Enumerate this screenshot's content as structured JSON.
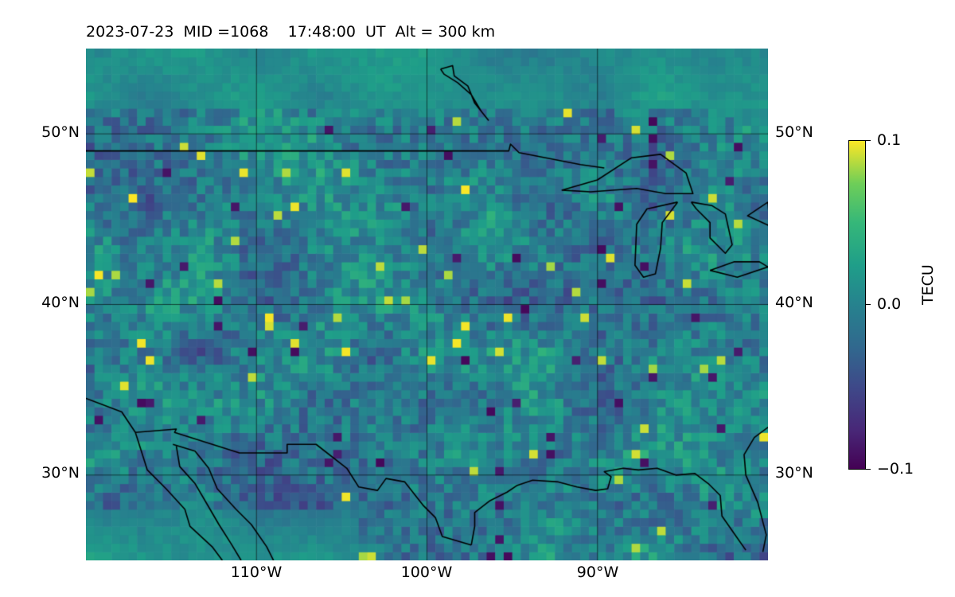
{
  "title": "2023-07-23  MID =1068    17:48:00  UT  Alt = 300 km",
  "map": {
    "projection": "plate carree",
    "lon_range": [
      -120,
      -80
    ],
    "lat_range": [
      25,
      55
    ],
    "grid": true,
    "lat_ticks": [
      {
        "value": 30,
        "label": "30°N"
      },
      {
        "value": 40,
        "label": "40°N"
      },
      {
        "value": 50,
        "label": "50°N"
      }
    ],
    "lon_ticks": [
      {
        "value": -110,
        "label": "110°W"
      },
      {
        "value": -100,
        "label": "100°W"
      },
      {
        "value": -90,
        "label": "90°W"
      }
    ],
    "field": "differential TEC, 0.5° grid cells",
    "colormap": "viridis"
  },
  "colorbar": {
    "label": "TECU",
    "min": -0.1,
    "max": 0.1,
    "ticks": [
      {
        "value": 0.1,
        "label": "0.1"
      },
      {
        "value": 0.0,
        "label": "0.0"
      },
      {
        "value": -0.1,
        "label": "−0.1"
      }
    ]
  },
  "colors": {
    "viridis": [
      "#440154",
      "#482878",
      "#3e4989",
      "#31688e",
      "#26828e",
      "#1f9e89",
      "#35b779",
      "#6ece58",
      "#fde725"
    ],
    "coastline": "#000000",
    "grid": "#000000"
  }
}
